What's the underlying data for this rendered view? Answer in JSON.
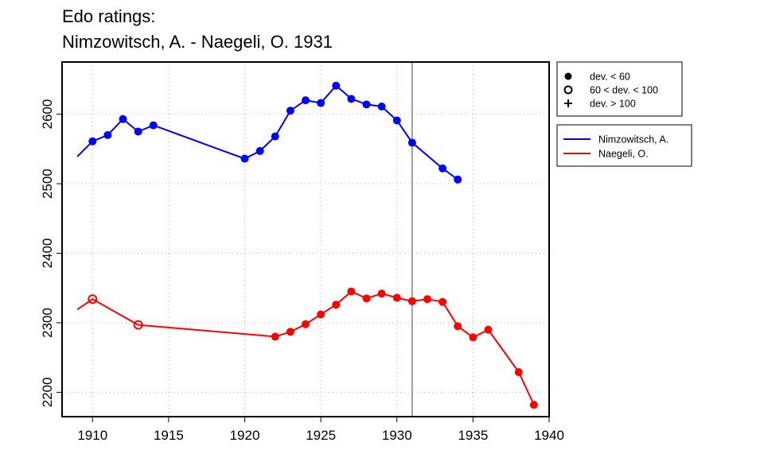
{
  "chart_data": {
    "type": "line",
    "title": "Edo ratings:",
    "subtitle": "Nimzowitsch, A. - Naegeli, O. 1931",
    "xlabel": "",
    "ylabel": "",
    "xlim": [
      1908,
      1940
    ],
    "ylim": [
      2165,
      2675
    ],
    "x_ticks": [
      1910,
      1915,
      1920,
      1925,
      1930,
      1935,
      1940
    ],
    "y_ticks": [
      2200,
      2300,
      2400,
      2500,
      2600
    ],
    "grid": true,
    "vline_x": 1931,
    "series": [
      {
        "name": "Nimzowitsch, A.",
        "color": "#0000ff",
        "points": [
          {
            "x": 1909,
            "y": 2539,
            "marker": "none"
          },
          {
            "x": 1910,
            "y": 2561,
            "marker": "filled"
          },
          {
            "x": 1911,
            "y": 2570,
            "marker": "filled"
          },
          {
            "x": 1912,
            "y": 2593,
            "marker": "filled"
          },
          {
            "x": 1913,
            "y": 2575,
            "marker": "filled"
          },
          {
            "x": 1914,
            "y": 2584,
            "marker": "filled"
          },
          {
            "x": 1920,
            "y": 2536,
            "marker": "filled"
          },
          {
            "x": 1921,
            "y": 2547,
            "marker": "filled"
          },
          {
            "x": 1922,
            "y": 2568,
            "marker": "filled"
          },
          {
            "x": 1923,
            "y": 2605,
            "marker": "filled"
          },
          {
            "x": 1924,
            "y": 2620,
            "marker": "filled"
          },
          {
            "x": 1925,
            "y": 2616,
            "marker": "filled"
          },
          {
            "x": 1926,
            "y": 2641,
            "marker": "filled"
          },
          {
            "x": 1927,
            "y": 2622,
            "marker": "filled"
          },
          {
            "x": 1928,
            "y": 2614,
            "marker": "filled"
          },
          {
            "x": 1929,
            "y": 2611,
            "marker": "filled"
          },
          {
            "x": 1930,
            "y": 2591,
            "marker": "filled"
          },
          {
            "x": 1931,
            "y": 2559,
            "marker": "filled"
          },
          {
            "x": 1933,
            "y": 2522,
            "marker": "filled"
          },
          {
            "x": 1934,
            "y": 2506,
            "marker": "filled"
          }
        ]
      },
      {
        "name": "Naegeli, O.",
        "color": "#ff0000",
        "points": [
          {
            "x": 1909,
            "y": 2319,
            "marker": "none"
          },
          {
            "x": 1910,
            "y": 2334,
            "marker": "open"
          },
          {
            "x": 1913,
            "y": 2297,
            "marker": "open"
          },
          {
            "x": 1922,
            "y": 2280,
            "marker": "filled"
          },
          {
            "x": 1923,
            "y": 2287,
            "marker": "filled"
          },
          {
            "x": 1924,
            "y": 2298,
            "marker": "filled"
          },
          {
            "x": 1925,
            "y": 2312,
            "marker": "filled"
          },
          {
            "x": 1926,
            "y": 2326,
            "marker": "filled"
          },
          {
            "x": 1927,
            "y": 2345,
            "marker": "filled"
          },
          {
            "x": 1928,
            "y": 2335,
            "marker": "filled"
          },
          {
            "x": 1929,
            "y": 2342,
            "marker": "filled"
          },
          {
            "x": 1930,
            "y": 2336,
            "marker": "filled"
          },
          {
            "x": 1931,
            "y": 2331,
            "marker": "filled"
          },
          {
            "x": 1932,
            "y": 2334,
            "marker": "filled"
          },
          {
            "x": 1933,
            "y": 2330,
            "marker": "filled"
          },
          {
            "x": 1934,
            "y": 2295,
            "marker": "filled"
          },
          {
            "x": 1935,
            "y": 2279,
            "marker": "filled"
          },
          {
            "x": 1936,
            "y": 2290,
            "marker": "filled"
          },
          {
            "x": 1938,
            "y": 2229,
            "marker": "filled"
          },
          {
            "x": 1939,
            "y": 2182,
            "marker": "filled"
          }
        ]
      }
    ],
    "legend_placement": "outside-right",
    "marker_legend": [
      {
        "symbol": "filled-circle",
        "label": "dev. < 60"
      },
      {
        "symbol": "open-circle",
        "label": "60 < dev. < 100"
      },
      {
        "symbol": "plus",
        "label": "dev. > 100"
      }
    ]
  }
}
